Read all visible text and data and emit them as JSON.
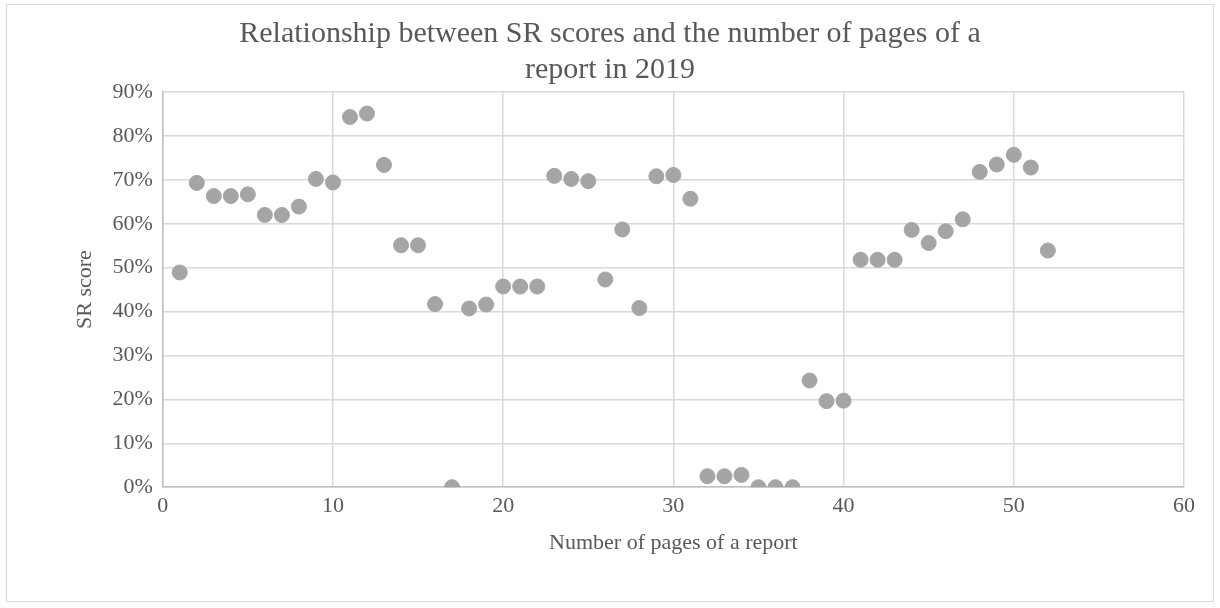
{
  "chart_data": {
    "type": "scatter",
    "title": "Relationship between SR scores and the number of pages of a report in 2019",
    "xlabel": "Number of pages of a report",
    "ylabel": "SR score",
    "x": [
      1,
      2,
      3,
      4,
      5,
      6,
      7,
      8,
      9,
      10,
      11,
      12,
      13,
      14,
      15,
      16,
      17,
      18,
      19,
      20,
      21,
      22,
      23,
      24,
      25,
      26,
      27,
      28,
      29,
      30,
      31,
      32,
      33,
      34,
      35,
      36,
      37,
      38,
      39,
      40,
      41,
      42,
      43,
      44,
      45,
      46,
      47,
      48,
      49,
      50,
      51,
      52
    ],
    "series": [
      {
        "color": "#a5a5a5",
        "values": [
          48.9,
          69.3,
          66.3,
          66.3,
          66.7,
          62.0,
          62.0,
          63.9,
          70.2,
          69.4,
          84.3,
          85.1,
          73.4,
          55.1,
          55.1,
          41.7,
          0,
          40.7,
          41.6,
          45.7,
          45.7,
          45.7,
          70.9,
          70.2,
          69.7,
          47.3,
          58.7,
          40.8,
          70.8,
          71.1,
          65.7,
          2.5,
          2.5,
          2.8,
          0,
          0,
          0,
          24.3,
          19.6,
          19.7,
          51.8,
          51.8,
          51.8,
          58.6,
          55.6,
          58.3,
          61.0,
          71.8,
          73.5,
          75.7,
          72.8,
          53.9
        ]
      }
    ],
    "xlim": [
      0,
      60
    ],
    "xticks": [
      0,
      10,
      20,
      30,
      40,
      50,
      60
    ],
    "ylim": [
      0,
      90
    ],
    "yticks": [
      {
        "value": 0,
        "label": "0%"
      },
      {
        "value": 10,
        "label": "10%"
      },
      {
        "value": 20,
        "label": "20%"
      },
      {
        "value": 30,
        "label": "30%"
      },
      {
        "value": 40,
        "label": "40%"
      },
      {
        "value": 50,
        "label": "50%"
      },
      {
        "value": 60,
        "label": "60%"
      },
      {
        "value": 70,
        "label": "70%"
      },
      {
        "value": 80,
        "label": "80%"
      },
      {
        "value": 90,
        "label": "90%"
      }
    ],
    "grid": true,
    "legend": false,
    "marker": "circle"
  }
}
